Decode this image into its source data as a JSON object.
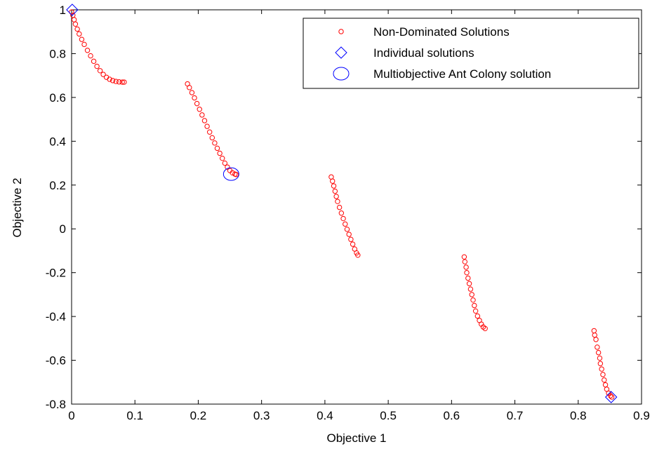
{
  "chart_data": {
    "type": "scatter",
    "xlabel": "Objective 1",
    "ylabel": "Objective 2",
    "xlim": [
      0,
      0.9
    ],
    "ylim": [
      -0.8,
      1.0
    ],
    "xticks": [
      0,
      0.1,
      0.2,
      0.3,
      0.4,
      0.5,
      0.6,
      0.7,
      0.8,
      0.9
    ],
    "yticks": [
      -0.8,
      -0.6,
      -0.4,
      -0.2,
      0,
      0.2,
      0.4,
      0.6,
      0.8,
      1
    ],
    "xtick_labels": [
      "0",
      "0.1",
      "0.2",
      "0.3",
      "0.4",
      "0.5",
      "0.6",
      "0.7",
      "0.8",
      "0.9"
    ],
    "ytick_labels": [
      "-0.8",
      "-0.6",
      "-0.4",
      "-0.2",
      "0",
      "0.2",
      "0.4",
      "0.6",
      "0.8",
      "1"
    ],
    "grid": false,
    "legend_position": "top-right",
    "series": [
      {
        "name": "Non-Dominated Solutions",
        "marker": "circle",
        "color": "#ff0000",
        "points": [
          [
            0.0,
            0.99
          ],
          [
            0.002,
            0.975
          ],
          [
            0.004,
            0.955
          ],
          [
            0.006,
            0.935
          ],
          [
            0.009,
            0.912
          ],
          [
            0.012,
            0.89
          ],
          [
            0.016,
            0.865
          ],
          [
            0.02,
            0.842
          ],
          [
            0.025,
            0.815
          ],
          [
            0.03,
            0.79
          ],
          [
            0.035,
            0.765
          ],
          [
            0.04,
            0.742
          ],
          [
            0.045,
            0.722
          ],
          [
            0.05,
            0.705
          ],
          [
            0.055,
            0.692
          ],
          [
            0.06,
            0.683
          ],
          [
            0.065,
            0.677
          ],
          [
            0.07,
            0.673
          ],
          [
            0.075,
            0.671
          ],
          [
            0.08,
            0.67
          ],
          [
            0.083,
            0.67
          ],
          [
            0.183,
            0.662
          ],
          [
            0.186,
            0.645
          ],
          [
            0.19,
            0.622
          ],
          [
            0.194,
            0.598
          ],
          [
            0.198,
            0.572
          ],
          [
            0.202,
            0.546
          ],
          [
            0.206,
            0.52
          ],
          [
            0.21,
            0.494
          ],
          [
            0.214,
            0.468
          ],
          [
            0.218,
            0.442
          ],
          [
            0.222,
            0.416
          ],
          [
            0.226,
            0.392
          ],
          [
            0.23,
            0.368
          ],
          [
            0.234,
            0.345
          ],
          [
            0.238,
            0.322
          ],
          [
            0.242,
            0.3
          ],
          [
            0.246,
            0.282
          ],
          [
            0.25,
            0.266
          ],
          [
            0.254,
            0.256
          ],
          [
            0.258,
            0.25
          ],
          [
            0.26,
            0.248
          ],
          [
            0.41,
            0.237
          ],
          [
            0.412,
            0.218
          ],
          [
            0.414,
            0.196
          ],
          [
            0.416,
            0.172
          ],
          [
            0.418,
            0.148
          ],
          [
            0.42,
            0.125
          ],
          [
            0.423,
            0.098
          ],
          [
            0.426,
            0.072
          ],
          [
            0.429,
            0.047
          ],
          [
            0.432,
            0.022
          ],
          [
            0.435,
            -0.002
          ],
          [
            0.438,
            -0.025
          ],
          [
            0.441,
            -0.048
          ],
          [
            0.444,
            -0.07
          ],
          [
            0.447,
            -0.092
          ],
          [
            0.45,
            -0.11
          ],
          [
            0.452,
            -0.12
          ],
          [
            0.62,
            -0.128
          ],
          [
            0.621,
            -0.15
          ],
          [
            0.623,
            -0.175
          ],
          [
            0.624,
            -0.2
          ],
          [
            0.626,
            -0.225
          ],
          [
            0.628,
            -0.25
          ],
          [
            0.63,
            -0.275
          ],
          [
            0.632,
            -0.3
          ],
          [
            0.634,
            -0.325
          ],
          [
            0.636,
            -0.35
          ],
          [
            0.638,
            -0.375
          ],
          [
            0.641,
            -0.398
          ],
          [
            0.644,
            -0.418
          ],
          [
            0.647,
            -0.435
          ],
          [
            0.65,
            -0.448
          ],
          [
            0.653,
            -0.455
          ],
          [
            0.825,
            -0.465
          ],
          [
            0.826,
            -0.485
          ],
          [
            0.828,
            -0.505
          ],
          [
            0.83,
            -0.54
          ],
          [
            0.832,
            -0.565
          ],
          [
            0.834,
            -0.59
          ],
          [
            0.835,
            -0.615
          ],
          [
            0.837,
            -0.64
          ],
          [
            0.839,
            -0.665
          ],
          [
            0.841,
            -0.69
          ],
          [
            0.843,
            -0.712
          ],
          [
            0.845,
            -0.732
          ],
          [
            0.848,
            -0.75
          ],
          [
            0.851,
            -0.762
          ],
          [
            0.853,
            -0.768
          ]
        ]
      },
      {
        "name": "Individual solutions",
        "marker": "diamond",
        "color": "#0000ff",
        "points": [
          [
            0.001,
            1.0
          ],
          [
            0.852,
            -0.768
          ]
        ]
      },
      {
        "name": "Multiobjective Ant Colony solution",
        "marker": "open-circle",
        "color": "#0000ff",
        "points": [
          [
            0.252,
            0.25
          ]
        ]
      }
    ]
  }
}
